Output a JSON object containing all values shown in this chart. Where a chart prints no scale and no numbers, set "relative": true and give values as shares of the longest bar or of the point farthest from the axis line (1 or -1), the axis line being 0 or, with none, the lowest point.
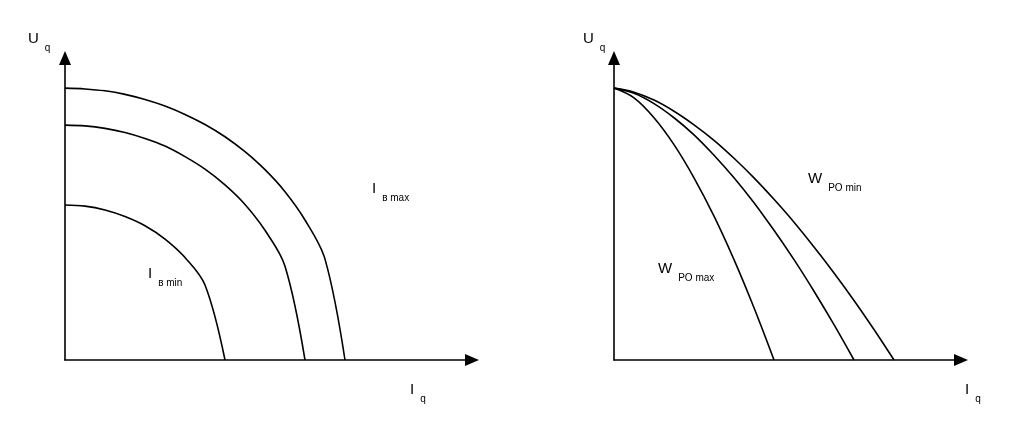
{
  "chart_data": [
    {
      "type": "line",
      "relative": true,
      "xlabel": "I$_{q}$",
      "ylabel": "U$_{q}$",
      "ylim": [
        0,
        1.085
      ],
      "tick_labels": false,
      "grid": false,
      "marker": "none",
      "line_style": "solid",
      "categories": [
        null,
        null,
        null,
        null,
        null,
        null,
        null,
        null,
        null,
        null,
        null,
        null,
        null,
        null,
        null,
        null,
        null,
        null,
        null,
        null,
        null
      ],
      "series": [
        {
          "color": "#000000",
          "values": [
            1,
            0.997,
            0.99,
            0.977,
            0.958,
            0.934,
            0.903,
            0.866,
            0.821,
            0.766,
            0.7,
            0.619,
            0.515,
            0.371,
            0,
            null,
            null,
            null,
            null,
            null,
            null
          ]
        },
        {
          "color": "#000000",
          "values": [
            0.864,
            0.861,
            0.852,
            0.837,
            0.815,
            0.787,
            0.748,
            0.702,
            0.644,
            0.572,
            0.477,
            0.345,
            0,
            null,
            null,
            null,
            null,
            null,
            null,
            null,
            null
          ]
        },
        {
          "color": "#000000",
          "values": [
            0.57,
            0.566,
            0.552,
            0.528,
            0.494,
            0.445,
            0.377,
            0.276,
            0,
            null,
            null,
            null,
            null,
            null,
            null,
            null,
            null,
            null,
            null,
            null,
            null
          ]
        }
      ],
      "annotations": [
        "I$_{в max}$",
        "I$_{в min}$"
      ]
    },
    {
      "type": "line",
      "relative": true,
      "xlabel": "I$_{q}$",
      "ylabel": "U$_{q}$",
      "ylim": [
        0,
        1.085
      ],
      "tick_labels": false,
      "grid": false,
      "marker": "none",
      "line_style": "solid",
      "categories": [
        null,
        null,
        null,
        null,
        null,
        null,
        null,
        null,
        null,
        null,
        null,
        null,
        null,
        null,
        null,
        null,
        null,
        null
      ],
      "series": [
        {
          "color": "#000000",
          "values": [
            1,
            0.964,
            0.891,
            0.792,
            0.67,
            0.529,
            0.369,
            0.192,
            0,
            null,
            null,
            null,
            null,
            null,
            null,
            null,
            null,
            null
          ]
        },
        {
          "color": "#000000",
          "values": [
            1,
            0.981,
            0.943,
            0.891,
            0.828,
            0.753,
            0.67,
            0.578,
            0.477,
            0.369,
            0.253,
            0.13,
            0,
            null,
            null,
            null,
            null,
            null
          ]
        },
        {
          "color": "#000000",
          "values": [
            1,
            0.985,
            0.956,
            0.915,
            0.865,
            0.808,
            0.742,
            0.67,
            0.591,
            0.507,
            0.416,
            0.32,
            0.219,
            0.112,
            0,
            null,
            null,
            null
          ]
        }
      ],
      "annotations": [
        "W$_{PO min}$",
        "W$_{PO max}$"
      ]
    }
  ]
}
